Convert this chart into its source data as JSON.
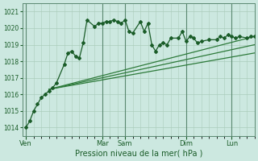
{
  "xlabel": "Pression niveau de la mer( hPa )",
  "ylim": [
    1013.5,
    1021.5
  ],
  "yticks": [
    1014,
    1015,
    1016,
    1017,
    1018,
    1019,
    1020,
    1021
  ],
  "background_color": "#cce8e0",
  "grid_color": "#aaccbb",
  "line_color_dark": "#1a5c28",
  "line_color_light": "#2d7a3a",
  "day_labels": [
    "Ven",
    "Mar",
    "Sam",
    "Dim",
    "Lun"
  ],
  "day_positions": [
    0,
    10,
    13,
    21,
    27
  ],
  "xlim": [
    -0.5,
    30
  ],
  "series1_x": [
    0,
    0.5,
    1,
    1.5,
    2,
    2.5,
    3,
    3.5,
    4,
    5,
    5.5,
    6,
    6.5,
    7,
    7.5,
    8,
    9,
    9.5,
    10,
    10.5,
    11,
    11.5,
    12,
    12.5,
    13,
    13.5,
    14,
    15,
    15.5,
    16,
    16.5,
    17,
    17.5,
    18,
    18.5,
    19,
    20,
    20.5,
    21,
    21.5,
    22,
    22.5,
    23,
    24,
    25,
    25.5,
    26,
    26.5,
    27,
    27.5,
    28,
    29,
    29.5,
    30
  ],
  "series1_y": [
    1014.0,
    1014.4,
    1015.0,
    1015.4,
    1015.8,
    1016.0,
    1016.2,
    1016.4,
    1016.7,
    1017.8,
    1018.5,
    1018.6,
    1018.3,
    1018.2,
    1019.1,
    1020.5,
    1020.1,
    1020.3,
    1020.3,
    1020.4,
    1020.4,
    1020.5,
    1020.4,
    1020.3,
    1020.5,
    1019.8,
    1019.7,
    1020.4,
    1019.8,
    1020.3,
    1019.0,
    1018.6,
    1019.0,
    1019.1,
    1019.0,
    1019.4,
    1019.4,
    1019.8,
    1019.2,
    1019.5,
    1019.4,
    1019.1,
    1019.2,
    1019.3,
    1019.3,
    1019.5,
    1019.4,
    1019.6,
    1019.5,
    1019.4,
    1019.5,
    1019.4,
    1019.5,
    1019.5
  ],
  "series2_x": [
    3,
    30
  ],
  "series2_y": [
    1016.3,
    1019.5
  ],
  "series3_x": [
    3,
    30
  ],
  "series3_y": [
    1016.3,
    1019.0
  ],
  "series4_x": [
    3,
    30
  ],
  "series4_y": [
    1016.3,
    1018.5
  ]
}
